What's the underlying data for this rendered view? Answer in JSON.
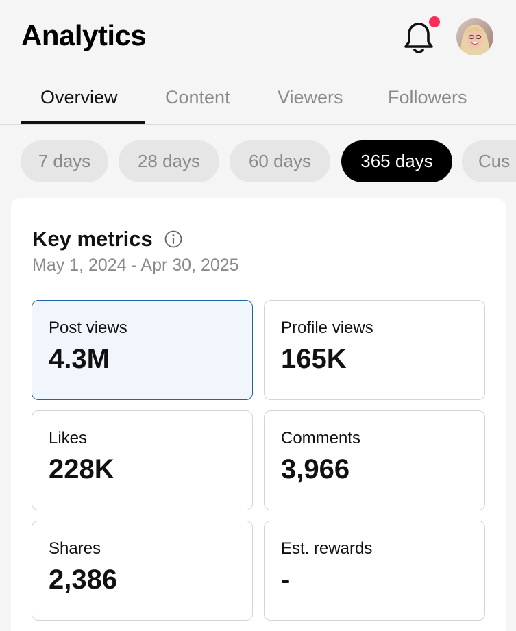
{
  "header": {
    "title": "Analytics",
    "notification_icon": "bell-icon",
    "notification_dot_color": "#fe2c55",
    "avatar": "profile-avatar"
  },
  "tabs": [
    {
      "label": "Overview",
      "active": true
    },
    {
      "label": "Content",
      "active": false
    },
    {
      "label": "Viewers",
      "active": false
    },
    {
      "label": "Followers",
      "active": false
    }
  ],
  "date_filters": [
    {
      "label": "7 days",
      "active": false
    },
    {
      "label": "28 days",
      "active": false
    },
    {
      "label": "60 days",
      "active": false
    },
    {
      "label": "365 days",
      "active": true
    },
    {
      "label": "Cus",
      "active": false
    }
  ],
  "key_metrics": {
    "title": "Key metrics",
    "info_icon": "info-icon",
    "date_range": "May 1, 2024 - Apr 30, 2025",
    "selected_color": "#2463a6",
    "items": [
      {
        "label": "Post views",
        "value": "4.3M",
        "selected": true
      },
      {
        "label": "Profile views",
        "value": "165K",
        "selected": false
      },
      {
        "label": "Likes",
        "value": "228K",
        "selected": false
      },
      {
        "label": "Comments",
        "value": "3,966",
        "selected": false
      },
      {
        "label": "Shares",
        "value": "2,386",
        "selected": false
      },
      {
        "label": "Est. rewards",
        "value": "-",
        "selected": false
      }
    ]
  }
}
